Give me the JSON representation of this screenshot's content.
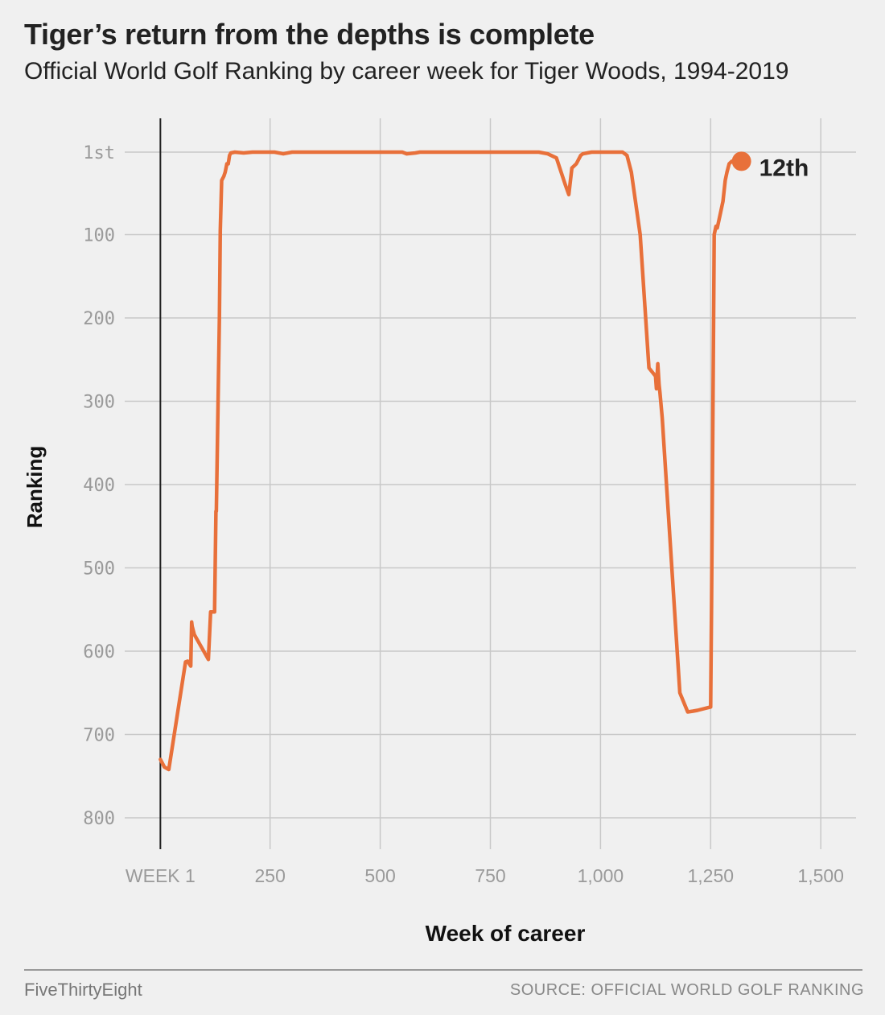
{
  "header": {
    "title": "Tiger’s return from the depths is complete",
    "subtitle": "Official World Golf Ranking by career week for Tiger Woods, 1994-2019"
  },
  "footer": {
    "brand": "FiveThirtyEight",
    "source": "SOURCE: OFFICIAL WORLD GOLF RANKING"
  },
  "colors": {
    "line": "#e8703a",
    "grid": "#c8c8c8",
    "axis": "#222222",
    "background": "#f0f0f0"
  },
  "chart_data": {
    "type": "line",
    "xlabel": "Week of career",
    "ylabel": "Ranking",
    "xlim": [
      -80,
      1580
    ],
    "ylim": [
      1,
      800
    ],
    "y_inverted": true,
    "grid": true,
    "x_ticks": [
      {
        "value": 1,
        "label": "WEEK 1"
      },
      {
        "value": 250,
        "label": "250"
      },
      {
        "value": 500,
        "label": "500"
      },
      {
        "value": 750,
        "label": "750"
      },
      {
        "value": 1000,
        "label": "1,000"
      },
      {
        "value": 1250,
        "label": "1,250"
      },
      {
        "value": 1500,
        "label": "1,500"
      }
    ],
    "y_ticks": [
      {
        "value": 1,
        "label": "1st"
      },
      {
        "value": 100,
        "label": "100"
      },
      {
        "value": 200,
        "label": "200"
      },
      {
        "value": 300,
        "label": "300"
      },
      {
        "value": 400,
        "label": "400"
      },
      {
        "value": 500,
        "label": "500"
      },
      {
        "value": 600,
        "label": "600"
      },
      {
        "value": 700,
        "label": "700"
      },
      {
        "value": 800,
        "label": "800"
      }
    ],
    "series": [
      {
        "x": [
          1,
          10,
          20,
          58,
          63,
          70,
          72,
          73,
          78,
          110,
          115,
          124,
          127,
          128,
          135,
          137,
          140,
          145,
          148,
          152,
          155,
          158,
          161,
          170,
          190,
          210,
          260,
          280,
          300,
          350,
          400,
          500,
          550,
          560,
          580,
          590,
          600,
          700,
          800,
          860,
          880,
          900,
          920,
          928,
          935,
          945,
          955,
          960,
          970,
          980,
          1000,
          1050,
          1060,
          1070,
          1090,
          1110,
          1125,
          1127,
          1130,
          1133,
          1135,
          1140,
          1180,
          1198,
          1210,
          1220,
          1250,
          1252,
          1258,
          1262,
          1265,
          1272,
          1278,
          1283,
          1287,
          1292,
          1298,
          1308,
          1320
        ],
        "y": [
          730,
          739,
          742,
          613,
          612,
          618,
          565,
          570,
          580,
          610,
          553,
          553,
          432,
          432,
          200,
          95,
          35,
          30,
          25,
          15,
          15,
          5,
          2,
          1,
          2,
          1,
          1,
          3,
          1,
          1,
          1,
          1,
          1,
          3,
          2,
          1,
          1,
          1,
          1,
          1,
          3,
          8,
          40,
          52,
          20,
          15,
          5,
          3,
          2,
          1,
          1,
          1,
          5,
          25,
          100,
          260,
          270,
          285,
          255,
          280,
          290,
          320,
          650,
          673,
          672,
          671,
          667,
          545,
          100,
          90,
          92,
          75,
          60,
          35,
          25,
          15,
          12,
          13,
          12
        ]
      }
    ],
    "annotations": [
      {
        "x": 1320,
        "y": 12,
        "text": "12th"
      }
    ]
  }
}
